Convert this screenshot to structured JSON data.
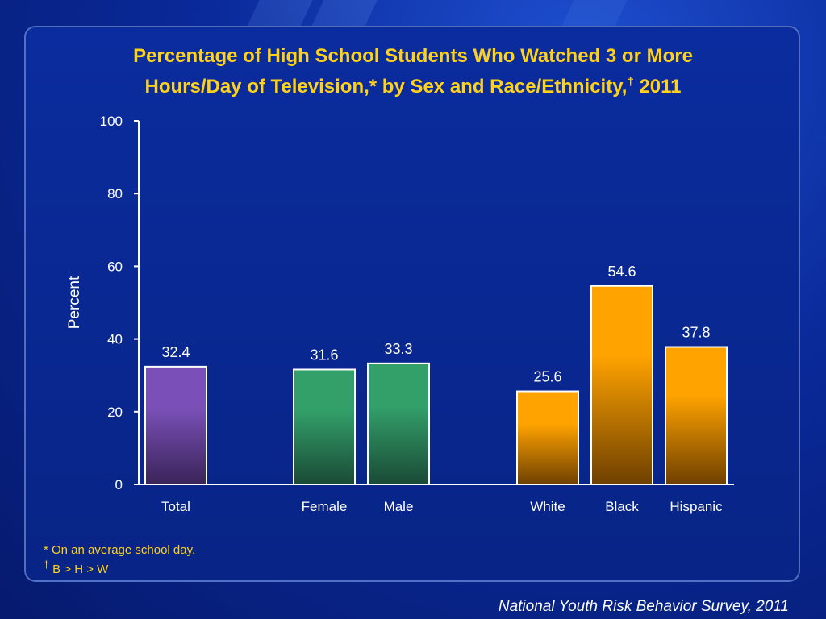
{
  "slide": {
    "title_line1": "Percentage of High School Students Who Watched 3 or More",
    "title_line2": "Hours/Day of Television,* by Sex and Race/Ethnicity,",
    "title_dagger": "†",
    "title_year": " 2011",
    "footnote1": "* On an average school day.",
    "footnote2_mark": "†",
    "footnote2_text": " B > H > W",
    "source": "National Youth Risk Behavior Survey, 2011"
  },
  "colors": {
    "total": "#7b52b8",
    "sex": "#2e9a64",
    "race": "#ffa500",
    "title": "#ffd11a",
    "text": "#ffffff"
  },
  "chart_data": {
    "type": "bar",
    "categories": [
      "Total",
      "Female",
      "Male",
      "White",
      "Black",
      "Hispanic"
    ],
    "groups": [
      "total",
      "sex",
      "sex",
      "race",
      "race",
      "race"
    ],
    "values": [
      32.4,
      31.6,
      33.3,
      25.6,
      54.6,
      37.8
    ],
    "value_labels": [
      "32.4",
      "31.6",
      "33.3",
      "25.6",
      "54.6",
      "37.8"
    ],
    "ylabel": "Percent",
    "xlabel": "",
    "ylim": [
      0,
      100
    ],
    "yticks": [
      "0",
      "20",
      "40",
      "60",
      "80",
      "100"
    ],
    "grid": false,
    "legend": "none"
  }
}
